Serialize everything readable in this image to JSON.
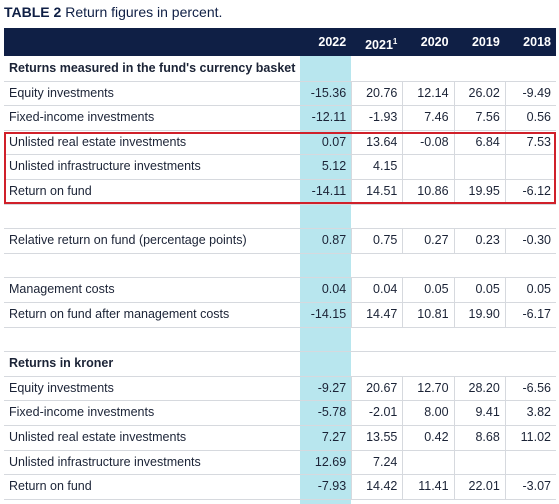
{
  "title": {
    "label": "TABLE 2",
    "text": "Return figures in percent."
  },
  "header": [
    {
      "label": "2022"
    },
    {
      "label": "2021",
      "note": "1"
    },
    {
      "label": "2020"
    },
    {
      "label": "2019"
    },
    {
      "label": "2018"
    }
  ],
  "groups": [
    {
      "heading": "Returns measured in the fund's currency basket",
      "rows": [
        {
          "label": "Equity investments",
          "values": [
            "-15.36",
            "20.76",
            "12.14",
            "26.02",
            "-9.49"
          ]
        },
        {
          "label": "Fixed-income investments",
          "values": [
            "-12.11",
            "-1.93",
            "7.46",
            "7.56",
            "0.56"
          ]
        },
        {
          "label": "Unlisted real estate investments",
          "values": [
            "0.07",
            "13.64",
            "-0.08",
            "6.84",
            "7.53"
          ]
        },
        {
          "label": "Unlisted infrastructure investments",
          "values": [
            "5.12",
            "4.15",
            null,
            null,
            null
          ]
        },
        {
          "label": "Return on fund",
          "values": [
            "-14.11",
            "14.51",
            "10.86",
            "19.95",
            "-6.12"
          ]
        }
      ]
    },
    {
      "rows": [
        {
          "label": "Relative return on fund (percentage points)",
          "values": [
            "0.87",
            "0.75",
            "0.27",
            "0.23",
            "-0.30"
          ]
        }
      ]
    },
    {
      "rows": [
        {
          "label": "Management costs",
          "values": [
            "0.04",
            "0.04",
            "0.05",
            "0.05",
            "0.05"
          ]
        },
        {
          "label": "Return on fund after management costs",
          "values": [
            "-14.15",
            "14.47",
            "10.81",
            "19.90",
            "-6.17"
          ]
        }
      ]
    },
    {
      "heading": "Returns in kroner",
      "rows": [
        {
          "label": "Equity investments",
          "values": [
            "-9.27",
            "20.67",
            "12.70",
            "28.20",
            "-6.56"
          ]
        },
        {
          "label": "Fixed-income investments",
          "values": [
            "-5.78",
            "-2.01",
            "8.00",
            "9.41",
            "3.82"
          ]
        },
        {
          "label": "Unlisted real estate investments",
          "values": [
            "7.27",
            "13.55",
            "0.42",
            "8.68",
            "11.02"
          ]
        },
        {
          "label": "Unlisted infrastructure investments",
          "values": [
            "12.69",
            "7.24",
            null,
            null,
            null
          ]
        },
        {
          "label": "Return on fund",
          "values": [
            "-7.93",
            "14.42",
            "11.41",
            "22.01",
            "-3.07"
          ]
        }
      ]
    }
  ]
}
